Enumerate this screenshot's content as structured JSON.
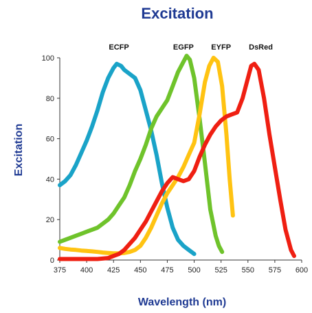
{
  "chart_data": {
    "type": "line",
    "title": "Excitation",
    "xlabel": "Wavelength (nm)",
    "ylabel": "Excitation",
    "xlim": [
      375,
      600
    ],
    "ylim": [
      0,
      100
    ],
    "x_ticks": [
      375,
      400,
      425,
      450,
      475,
      500,
      525,
      550,
      575,
      600
    ],
    "y_ticks": [
      0,
      20,
      40,
      60,
      80,
      100
    ],
    "grid": false,
    "legend": "labels above peaks",
    "series": [
      {
        "name": "ECFP",
        "color": "#1aa3c8",
        "label_at": [
          430,
          104
        ],
        "points": [
          [
            375,
            37
          ],
          [
            380,
            39
          ],
          [
            385,
            42
          ],
          [
            390,
            47
          ],
          [
            395,
            53
          ],
          [
            400,
            59
          ],
          [
            405,
            66
          ],
          [
            410,
            74
          ],
          [
            415,
            83
          ],
          [
            420,
            90
          ],
          [
            425,
            95
          ],
          [
            428,
            97
          ],
          [
            432,
            96
          ],
          [
            435,
            94
          ],
          [
            440,
            92
          ],
          [
            445,
            90
          ],
          [
            450,
            84
          ],
          [
            455,
            74
          ],
          [
            460,
            64
          ],
          [
            465,
            52
          ],
          [
            470,
            38
          ],
          [
            475,
            26
          ],
          [
            480,
            16
          ],
          [
            485,
            10
          ],
          [
            490,
            7
          ],
          [
            495,
            5
          ],
          [
            500,
            3
          ]
        ]
      },
      {
        "name": "EGFP",
        "color": "#6fc32b",
        "label_at": [
          490,
          104
        ],
        "points": [
          [
            375,
            9
          ],
          [
            380,
            10
          ],
          [
            385,
            11
          ],
          [
            390,
            12
          ],
          [
            395,
            13
          ],
          [
            400,
            14
          ],
          [
            405,
            15
          ],
          [
            410,
            16
          ],
          [
            415,
            18
          ],
          [
            420,
            20
          ],
          [
            425,
            23
          ],
          [
            430,
            27
          ],
          [
            435,
            31
          ],
          [
            440,
            37
          ],
          [
            445,
            44
          ],
          [
            450,
            50
          ],
          [
            455,
            57
          ],
          [
            460,
            65
          ],
          [
            465,
            71
          ],
          [
            470,
            75
          ],
          [
            475,
            79
          ],
          [
            480,
            86
          ],
          [
            485,
            93
          ],
          [
            490,
            98
          ],
          [
            493,
            101
          ],
          [
            496,
            99
          ],
          [
            500,
            90
          ],
          [
            505,
            70
          ],
          [
            510,
            48
          ],
          [
            515,
            25
          ],
          [
            520,
            12
          ],
          [
            523,
            7
          ],
          [
            526,
            4
          ]
        ]
      },
      {
        "name": "EYFP",
        "color": "#ffc312",
        "label_at": [
          525,
          104
        ],
        "points": [
          [
            375,
            6
          ],
          [
            380,
            5.5
          ],
          [
            385,
            5.2
          ],
          [
            390,
            5
          ],
          [
            395,
            4.7
          ],
          [
            400,
            4.5
          ],
          [
            405,
            4.3
          ],
          [
            410,
            4
          ],
          [
            415,
            3.7
          ],
          [
            420,
            3.5
          ],
          [
            425,
            3.3
          ],
          [
            430,
            3.3
          ],
          [
            435,
            3.5
          ],
          [
            440,
            4
          ],
          [
            445,
            5
          ],
          [
            450,
            7
          ],
          [
            455,
            11
          ],
          [
            460,
            16
          ],
          [
            465,
            22
          ],
          [
            470,
            28
          ],
          [
            475,
            33
          ],
          [
            480,
            37
          ],
          [
            485,
            41
          ],
          [
            490,
            46
          ],
          [
            495,
            52
          ],
          [
            500,
            58
          ],
          [
            505,
            72
          ],
          [
            510,
            88
          ],
          [
            514,
            96
          ],
          [
            518,
            100
          ],
          [
            522,
            98
          ],
          [
            526,
            86
          ],
          [
            530,
            62
          ],
          [
            533,
            40
          ],
          [
            536,
            22
          ]
        ]
      },
      {
        "name": "DsRed",
        "color": "#ef1f12",
        "label_at": [
          562,
          104
        ],
        "points": [
          [
            375,
            0.5
          ],
          [
            395,
            0.5
          ],
          [
            410,
            0.5
          ],
          [
            420,
            1
          ],
          [
            425,
            2
          ],
          [
            430,
            3
          ],
          [
            435,
            5
          ],
          [
            440,
            8
          ],
          [
            445,
            11
          ],
          [
            450,
            15
          ],
          [
            455,
            19
          ],
          [
            460,
            24
          ],
          [
            465,
            29
          ],
          [
            470,
            34
          ],
          [
            475,
            38
          ],
          [
            480,
            41
          ],
          [
            485,
            40
          ],
          [
            490,
            39
          ],
          [
            495,
            40
          ],
          [
            500,
            44
          ],
          [
            505,
            51
          ],
          [
            510,
            57
          ],
          [
            515,
            62
          ],
          [
            520,
            66
          ],
          [
            525,
            69
          ],
          [
            530,
            71
          ],
          [
            535,
            72
          ],
          [
            540,
            73
          ],
          [
            545,
            80
          ],
          [
            550,
            90
          ],
          [
            553,
            96
          ],
          [
            556,
            97
          ],
          [
            560,
            94
          ],
          [
            565,
            80
          ],
          [
            570,
            62
          ],
          [
            575,
            46
          ],
          [
            580,
            30
          ],
          [
            585,
            15
          ],
          [
            590,
            5
          ],
          [
            593,
            2
          ]
        ]
      }
    ]
  }
}
